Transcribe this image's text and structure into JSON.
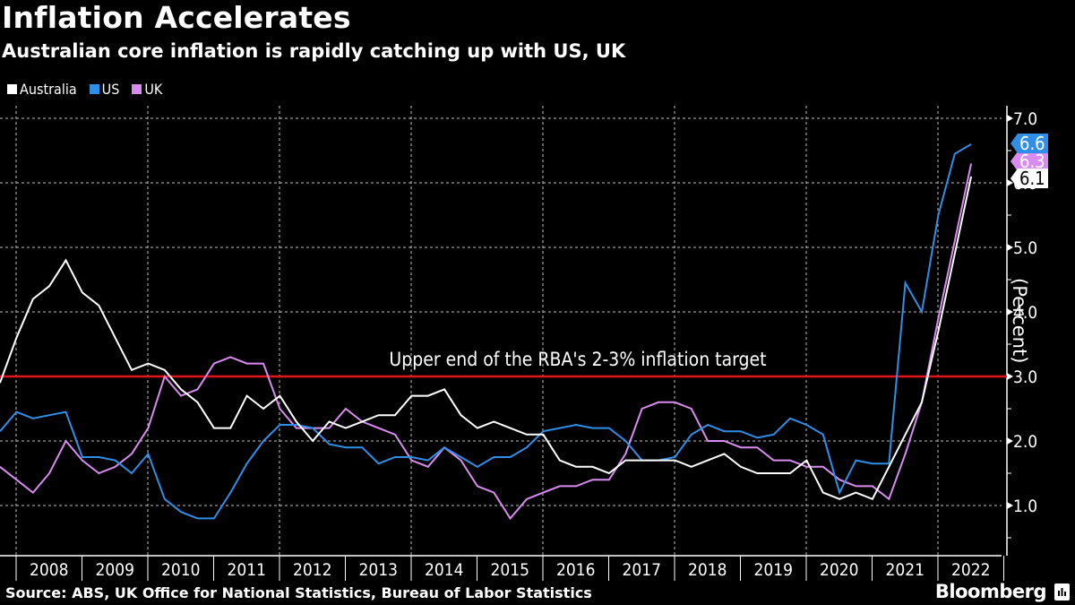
{
  "header": {
    "title": "Inflation Accelerates",
    "subtitle": "Australian core inflation is rapidly catching up with US, UK"
  },
  "legend": [
    {
      "name": "Australia",
      "color": "#ffffff"
    },
    {
      "name": "US",
      "color": "#2f8fe8"
    },
    {
      "name": "UK",
      "color": "#d98cf0"
    }
  ],
  "footer": {
    "source": "Source: ABS, UK Office for National Statistics, Bureau of Labor Statistics",
    "brand": "Bloomberg",
    "brand_icon": "bloomberg-chart-icon"
  },
  "chart_data": {
    "type": "line",
    "title": "Inflation Accelerates",
    "subtitle": "Australian core inflation is rapidly catching up with US, UK",
    "xlabel": "",
    "ylabel": "(Percent)",
    "ylim": [
      0.2,
      7.2
    ],
    "yticks": [
      1.0,
      2.0,
      3.0,
      4.0,
      5.0,
      6.0,
      7.0
    ],
    "ytick_labels": [
      "1.0",
      "2.0",
      "3.0",
      "4.0",
      "5.0",
      "6.0",
      "7.0"
    ],
    "x_tick_labels": [
      "2008",
      "2009",
      "2010",
      "2011",
      "2012",
      "2013",
      "2014",
      "2015",
      "2016",
      "2017",
      "2018",
      "2019",
      "2020",
      "2021",
      "2022"
    ],
    "x_frequency": "quarterly",
    "x_start": "2007 Q4",
    "x_end": "2022 Q3",
    "grid": true,
    "legend_position": "top-left",
    "reference_line": {
      "value": 3.0,
      "color": "#e3141b",
      "label": "Upper end of the RBA's 2-3% inflation target"
    },
    "end_labels": [
      {
        "series": "US",
        "text": "6.6"
      },
      {
        "series": "UK",
        "text": "6.3"
      },
      {
        "series": "Australia",
        "text": "6.1"
      }
    ],
    "series": [
      {
        "name": "Australia",
        "color": "#ffffff",
        "values": [
          2.9,
          3.6,
          4.2,
          4.4,
          4.8,
          4.3,
          4.1,
          3.6,
          3.1,
          3.2,
          3.1,
          2.8,
          2.6,
          2.2,
          2.2,
          2.7,
          2.5,
          2.7,
          2.3,
          2.0,
          2.3,
          2.2,
          2.3,
          2.4,
          2.4,
          2.7,
          2.7,
          2.8,
          2.4,
          2.2,
          2.3,
          2.2,
          2.1,
          2.1,
          1.7,
          1.6,
          1.6,
          1.5,
          1.7,
          1.7,
          1.7,
          1.7,
          1.6,
          1.7,
          1.8,
          1.6,
          1.5,
          1.5,
          1.5,
          1.7,
          1.2,
          1.1,
          1.2,
          1.1,
          1.6,
          2.1,
          2.6,
          3.7,
          4.9,
          6.1
        ]
      },
      {
        "name": "US",
        "color": "#2f8fe8",
        "values": [
          2.15,
          2.45,
          2.35,
          2.4,
          2.45,
          1.75,
          1.75,
          1.7,
          1.5,
          1.8,
          1.1,
          0.9,
          0.8,
          0.8,
          1.2,
          1.65,
          2.0,
          2.25,
          2.25,
          2.2,
          1.95,
          1.9,
          1.9,
          1.65,
          1.75,
          1.75,
          1.7,
          1.9,
          1.75,
          1.6,
          1.75,
          1.75,
          1.9,
          2.15,
          2.2,
          2.25,
          2.2,
          2.2,
          2.0,
          1.7,
          1.7,
          1.75,
          2.1,
          2.25,
          2.15,
          2.15,
          2.05,
          2.1,
          2.35,
          2.25,
          2.1,
          1.2,
          1.7,
          1.65,
          1.65,
          4.45,
          4.0,
          5.5,
          6.45,
          6.6
        ]
      },
      {
        "name": "UK",
        "color": "#d98cf0",
        "values": [
          1.6,
          1.4,
          1.2,
          1.5,
          2.0,
          1.7,
          1.5,
          1.6,
          1.8,
          2.2,
          3.0,
          2.7,
          2.8,
          3.2,
          3.3,
          3.2,
          3.2,
          2.5,
          2.2,
          2.2,
          2.2,
          2.5,
          2.3,
          2.2,
          2.1,
          1.7,
          1.6,
          1.9,
          1.7,
          1.3,
          1.2,
          0.8,
          1.1,
          1.2,
          1.3,
          1.3,
          1.4,
          1.4,
          1.8,
          2.5,
          2.6,
          2.6,
          2.5,
          2.0,
          2.0,
          1.9,
          1.9,
          1.7,
          1.7,
          1.6,
          1.6,
          1.4,
          1.3,
          1.3,
          1.1,
          1.8,
          2.6,
          3.9,
          5.1,
          6.3
        ]
      }
    ]
  }
}
